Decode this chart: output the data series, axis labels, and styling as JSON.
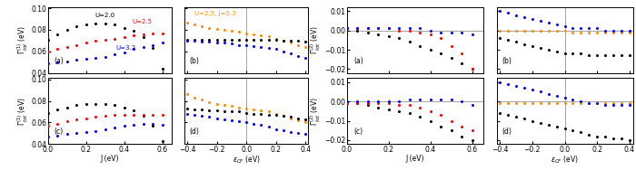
{
  "left_top_a": {
    "J_vals": [
      0.0,
      0.05,
      0.1,
      0.15,
      0.2,
      0.25,
      0.3,
      0.35,
      0.4,
      0.45,
      0.5,
      0.55,
      0.6
    ],
    "black": [
      0.071,
      0.076,
      0.08,
      0.083,
      0.085,
      0.086,
      0.086,
      0.085,
      0.082,
      0.079,
      0.073,
      0.063,
      0.044
    ],
    "red": [
      0.06,
      0.062,
      0.064,
      0.066,
      0.068,
      0.07,
      0.071,
      0.072,
      0.073,
      0.075,
      0.076,
      0.077,
      0.077
    ],
    "blue": [
      0.049,
      0.05,
      0.051,
      0.052,
      0.053,
      0.054,
      0.055,
      0.057,
      0.059,
      0.062,
      0.064,
      0.066,
      0.068
    ]
  },
  "left_top_b": {
    "ecf_vals": [
      -0.4,
      -0.35,
      -0.3,
      -0.25,
      -0.2,
      -0.15,
      -0.1,
      -0.05,
      0.0,
      0.05,
      0.1,
      0.15,
      0.2,
      0.25,
      0.3,
      0.35,
      0.4
    ],
    "orange": [
      0.087,
      0.085,
      0.083,
      0.082,
      0.081,
      0.08,
      0.079,
      0.078,
      0.077,
      0.076,
      0.075,
      0.074,
      0.072,
      0.07,
      0.068,
      0.066,
      0.064
    ],
    "black": [
      0.071,
      0.071,
      0.071,
      0.071,
      0.071,
      0.071,
      0.071,
      0.071,
      0.071,
      0.071,
      0.071,
      0.071,
      0.071,
      0.07,
      0.07,
      0.07,
      0.069
    ],
    "blue": [
      0.07,
      0.07,
      0.069,
      0.069,
      0.068,
      0.068,
      0.067,
      0.066,
      0.066,
      0.065,
      0.064,
      0.063,
      0.062,
      0.06,
      0.058,
      0.056,
      0.054
    ]
  },
  "left_bot_c": {
    "J_vals": [
      0.0,
      0.05,
      0.1,
      0.15,
      0.2,
      0.25,
      0.3,
      0.35,
      0.4,
      0.45,
      0.5,
      0.55,
      0.6
    ],
    "black": [
      0.069,
      0.072,
      0.074,
      0.076,
      0.077,
      0.077,
      0.077,
      0.076,
      0.074,
      0.071,
      0.066,
      0.057,
      0.043
    ],
    "red": [
      0.057,
      0.059,
      0.061,
      0.063,
      0.064,
      0.065,
      0.066,
      0.067,
      0.067,
      0.067,
      0.067,
      0.067,
      0.067
    ],
    "blue": [
      0.047,
      0.048,
      0.049,
      0.05,
      0.051,
      0.052,
      0.054,
      0.055,
      0.057,
      0.058,
      0.059,
      0.059,
      0.058
    ]
  },
  "left_bot_d": {
    "ecf_vals": [
      -0.4,
      -0.35,
      -0.3,
      -0.25,
      -0.2,
      -0.15,
      -0.1,
      -0.05,
      0.0,
      0.05,
      0.1,
      0.15,
      0.2,
      0.25,
      0.3,
      0.35,
      0.4
    ],
    "orange": [
      0.086,
      0.083,
      0.081,
      0.079,
      0.077,
      0.076,
      0.075,
      0.074,
      0.073,
      0.072,
      0.071,
      0.07,
      0.068,
      0.066,
      0.064,
      0.062,
      0.06
    ],
    "black": [
      0.073,
      0.072,
      0.072,
      0.071,
      0.071,
      0.07,
      0.07,
      0.07,
      0.069,
      0.068,
      0.068,
      0.067,
      0.067,
      0.066,
      0.065,
      0.064,
      0.063
    ],
    "blue": [
      0.068,
      0.067,
      0.066,
      0.065,
      0.064,
      0.063,
      0.062,
      0.061,
      0.06,
      0.059,
      0.058,
      0.056,
      0.054,
      0.053,
      0.051,
      0.05,
      0.049
    ]
  },
  "right_top_a": {
    "J_vals": [
      0.0,
      0.05,
      0.1,
      0.15,
      0.2,
      0.25,
      0.3,
      0.35,
      0.4,
      0.45,
      0.5,
      0.55,
      0.6
    ],
    "black": [
      0.001,
      0.0,
      -0.001,
      -0.002,
      -0.003,
      -0.004,
      -0.006,
      -0.008,
      -0.01,
      -0.012,
      -0.014,
      -0.017,
      -0.02
    ],
    "red": [
      0.001,
      0.001,
      0.001,
      0.001,
      0.001,
      0.0,
      0.0,
      -0.001,
      -0.002,
      -0.004,
      -0.008,
      -0.012,
      -0.02
    ],
    "blue": [
      0.001,
      0.001,
      0.001,
      0.001,
      0.001,
      0.001,
      0.001,
      0.001,
      0.0,
      -0.001,
      -0.001,
      -0.001,
      -0.002
    ]
  },
  "right_top_b": {
    "ecf_vals": [
      -0.4,
      -0.35,
      -0.3,
      -0.25,
      -0.2,
      -0.15,
      -0.1,
      -0.05,
      0.0,
      0.05,
      0.1,
      0.15,
      0.2,
      0.25,
      0.3,
      0.35,
      0.4
    ],
    "orange": [
      0.0,
      0.0,
      0.0,
      0.0,
      0.0,
      0.0,
      0.0,
      0.0,
      0.0,
      -0.001,
      -0.001,
      -0.001,
      -0.001,
      -0.001,
      -0.001,
      -0.001,
      -0.001
    ],
    "black": [
      -0.004,
      -0.005,
      -0.006,
      -0.007,
      -0.008,
      -0.009,
      -0.01,
      -0.011,
      -0.012,
      -0.012,
      -0.012,
      -0.013,
      -0.013,
      -0.013,
      -0.013,
      -0.013,
      -0.013
    ],
    "blue": [
      0.01,
      0.009,
      0.008,
      0.007,
      0.006,
      0.005,
      0.004,
      0.003,
      0.002,
      0.001,
      0.001,
      0.001,
      0.001,
      0.0,
      0.0,
      0.0,
      0.0
    ]
  },
  "right_bot_c": {
    "J_vals": [
      0.0,
      0.05,
      0.1,
      0.15,
      0.2,
      0.25,
      0.3,
      0.35,
      0.4,
      0.45,
      0.5,
      0.55,
      0.6
    ],
    "black": [
      -0.001,
      -0.001,
      -0.002,
      -0.003,
      -0.004,
      -0.005,
      -0.006,
      -0.008,
      -0.01,
      -0.013,
      -0.015,
      -0.018,
      -0.02
    ],
    "red": [
      -0.001,
      -0.001,
      -0.001,
      -0.001,
      -0.001,
      -0.002,
      -0.002,
      -0.003,
      -0.005,
      -0.007,
      -0.01,
      -0.013,
      -0.015
    ],
    "blue": [
      0.0,
      0.0,
      0.0,
      0.0,
      0.0,
      0.0,
      0.001,
      0.001,
      0.001,
      0.001,
      0.001,
      0.0,
      -0.002
    ]
  },
  "right_bot_d": {
    "ecf_vals": [
      -0.4,
      -0.35,
      -0.3,
      -0.25,
      -0.2,
      -0.15,
      -0.1,
      -0.05,
      0.0,
      0.05,
      0.1,
      0.15,
      0.2,
      0.25,
      0.3,
      0.35,
      0.4
    ],
    "orange": [
      -0.001,
      -0.001,
      -0.001,
      -0.001,
      -0.001,
      -0.001,
      -0.001,
      -0.001,
      -0.001,
      -0.001,
      -0.001,
      -0.001,
      -0.001,
      -0.001,
      -0.001,
      -0.001,
      -0.001
    ],
    "black": [
      -0.006,
      -0.007,
      -0.008,
      -0.009,
      -0.01,
      -0.011,
      -0.012,
      -0.013,
      -0.014,
      -0.015,
      -0.016,
      -0.017,
      -0.018,
      -0.018,
      -0.019,
      -0.019,
      -0.02
    ],
    "blue": [
      0.01,
      0.009,
      0.008,
      0.007,
      0.006,
      0.005,
      0.004,
      0.003,
      0.002,
      0.001,
      0.0,
      -0.001,
      -0.001,
      -0.002,
      -0.002,
      -0.002,
      -0.002
    ]
  },
  "colors": {
    "black": "#000000",
    "red": "#ff0000",
    "blue": "#0000ff",
    "orange": "#ff8c00"
  }
}
